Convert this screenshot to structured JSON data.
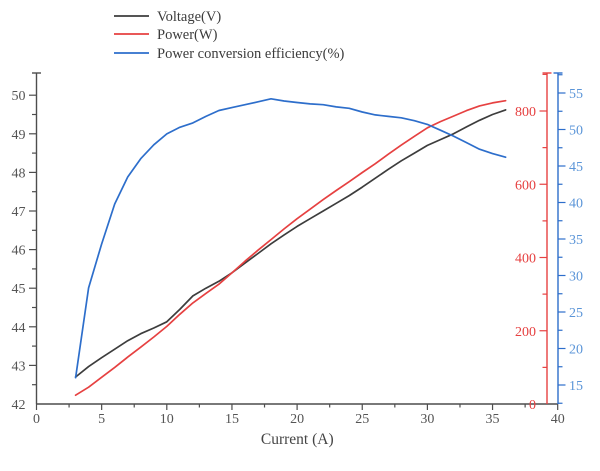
{
  "chart_data": {
    "type": "line",
    "title": "",
    "xlabel": "Current (A)",
    "legend_position": "top-left",
    "grid": false,
    "x": [
      3,
      4,
      5,
      6,
      7,
      8,
      9,
      10,
      11,
      12,
      13,
      14,
      15,
      16,
      17,
      18,
      19,
      20,
      21,
      22,
      23,
      24,
      25,
      26,
      27,
      28,
      29,
      30,
      31,
      32,
      33,
      34,
      35,
      36
    ],
    "series": [
      {
        "name": "Voltage(V)",
        "axis": "voltage",
        "color": "#3d3d3d",
        "values": [
          42.7,
          42.97,
          43.2,
          43.42,
          43.64,
          43.82,
          43.97,
          44.13,
          44.45,
          44.8,
          45.0,
          45.18,
          45.4,
          45.65,
          45.9,
          46.15,
          46.38,
          46.6,
          46.8,
          47.0,
          47.2,
          47.4,
          47.62,
          47.85,
          48.08,
          48.3,
          48.5,
          48.7,
          48.85,
          49.0,
          49.18,
          49.35,
          49.5,
          49.62
        ]
      },
      {
        "name": "Power(W)",
        "axis": "power",
        "color": "#e64141",
        "values": [
          24,
          46,
          73,
          100,
          128,
          155,
          183,
          212,
          245,
          276,
          302,
          327,
          358,
          390,
          420,
          449,
          478,
          506,
          532,
          558,
          583,
          607,
          632,
          656,
          682,
          707,
          731,
          754,
          771,
          786,
          801,
          814,
          822,
          828
        ]
      },
      {
        "name": "Power conversion efficiency(%)",
        "axis": "efficiency",
        "color": "#2d6ecb",
        "values": [
          16.0,
          28.3,
          34.3,
          39.8,
          43.5,
          46.0,
          47.9,
          49.4,
          50.3,
          50.9,
          51.8,
          52.6,
          53.0,
          53.4,
          53.8,
          54.2,
          53.9,
          53.7,
          53.5,
          53.4,
          53.1,
          52.9,
          52.4,
          52.0,
          51.8,
          51.6,
          51.2,
          50.7,
          49.9,
          49.1,
          48.2,
          47.3,
          46.7,
          46.2
        ]
      }
    ],
    "axes": {
      "x": {
        "label": "Current (A)",
        "range": [
          0,
          40
        ],
        "major_step": 5,
        "minor_step": 2.5,
        "tick_labels": [
          "0",
          "5",
          "10",
          "15",
          "20",
          "25",
          "30",
          "35",
          "40"
        ],
        "line_color": "#4d4d4d",
        "label_color": "#555555"
      },
      "voltage": {
        "side": "left",
        "range": [
          42,
          50
        ],
        "major_step": 1,
        "minor_step": 0.5,
        "tick_labels": [
          "42",
          "43",
          "44",
          "45",
          "46",
          "47",
          "48",
          "49",
          "50"
        ],
        "line_color": "#4d4d4d",
        "label_color": "#555555"
      },
      "power": {
        "side": "right-inner",
        "range": [
          0,
          800
        ],
        "major_step": 200,
        "minor_step": 100,
        "tick_labels": [
          "0",
          "200",
          "400",
          "600",
          "800"
        ],
        "line_color": "#e64141",
        "label_color": "#e64141"
      },
      "efficiency": {
        "side": "right-outer",
        "range": [
          15,
          55
        ],
        "major_step": 5,
        "minor_step": 2.5,
        "tick_labels": [
          "15",
          "20",
          "25",
          "30",
          "35",
          "40",
          "45",
          "50",
          "55"
        ],
        "line_color": "#2d6ecb",
        "label_color": "#5b95d8"
      }
    },
    "legend": {
      "entries": [
        "Voltage(V)",
        "Power(W)",
        "Power conversion efficiency(%)"
      ],
      "colors": [
        "#3d3d3d",
        "#e64141",
        "#2d6ecb"
      ]
    }
  }
}
